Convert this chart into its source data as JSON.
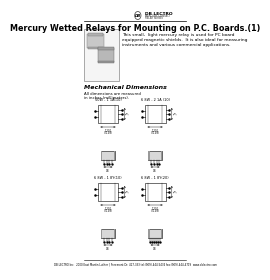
{
  "bg_color": "#ffffff",
  "title": "Mercury Wetted Relays for Mounting on P.C. Boards.(1)",
  "title_fontsize": 5.8,
  "logo_text": "DB LECTRO",
  "logo_sub1": "MERCURY CONTACT",
  "logo_sub2": "RELAY SERIES",
  "description_line1": "This small,  light mercury relay is used for PC board",
  "description_line2": "equipped magnetic shields.  It is also ideal for measuring",
  "description_line3": "instruments and various commercial applications.",
  "desc_fontsize": 3.2,
  "mech_title": "Mechanical Dimensions",
  "mech_sub1": "All dimensions are measured",
  "mech_sub2": "in inches (millimeters).",
  "mech_fontsize": 4.5,
  "mech_sub_fontsize": 2.8,
  "footer": "DB LECTRO Inc.  2000 East Martin Luther | Freemont Dr. 417-333 tel:(909)-444-5434 fax:(909)-444-4719  www.dblectro.com",
  "footer_fontsize": 1.9,
  "label_tl": "50W - 1 1A(10)",
  "label_tr": "6 8W - 2 1A (10)",
  "label_bl": "6 8W - 1 8Y(10)",
  "label_br": "6 8W - 1 8Y(20)",
  "label_fontsize": 2.5,
  "gray_light": "#d8d8d8",
  "gray_med": "#bbbbbb",
  "gray_dark": "#999999"
}
